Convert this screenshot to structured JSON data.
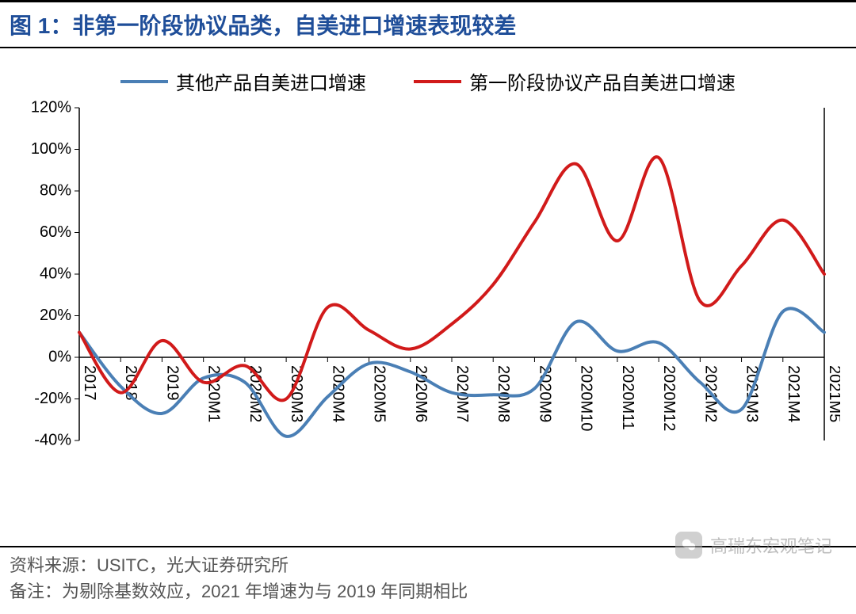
{
  "title": "图 1：非第一阶段协议品类，自美进口增速表现较差",
  "chart": {
    "type": "line",
    "background_color": "#ffffff",
    "ylim": [
      -40,
      120
    ],
    "ytick_step": 20,
    "y_suffix": "%",
    "x_labels": [
      "2017",
      "2018",
      "2019",
      "2020M1",
      "2020M2",
      "2020M3",
      "2020M4",
      "2020M5",
      "2020M6",
      "2020M7",
      "2020M8",
      "2020M9",
      "2020M10",
      "2020M11",
      "2020M12",
      "2021M2",
      "2021M3",
      "2021M4",
      "2021M5"
    ],
    "zero_line_color": "#000000",
    "axis_color": "#000000",
    "tick_label_fontsize": 20,
    "tick_label_color": "#000000",
    "series": [
      {
        "name": "其他产品自美进口增速",
        "color": "#4a7fb5",
        "line_width": 4,
        "values": [
          12,
          -14,
          -27,
          -10,
          -12,
          -38,
          -19,
          -3,
          -7,
          -17,
          -18,
          -15,
          17,
          3,
          7,
          -12,
          -25,
          22,
          12
        ]
      },
      {
        "name": "第一阶段协议产品自美进口增速",
        "color": "#d11a1a",
        "line_width": 4,
        "values": [
          12,
          -17,
          8,
          -12,
          -4,
          -20,
          24,
          13,
          4,
          16,
          35,
          65,
          93,
          56,
          96,
          27,
          44,
          66,
          40
        ]
      }
    ],
    "legend": {
      "position": "top",
      "swatch_width": 60,
      "fontsize": 24
    }
  },
  "footer": {
    "source_label": "资料来源：USITC，光大证券研究所",
    "note_label": "备注：为剔除基数效应，2021 年增速为与 2019 年同期相比",
    "font_color": "#555555",
    "fontsize": 22
  },
  "watermark": {
    "text": "高瑞东宏观笔记",
    "icon": "wechat-icon"
  }
}
